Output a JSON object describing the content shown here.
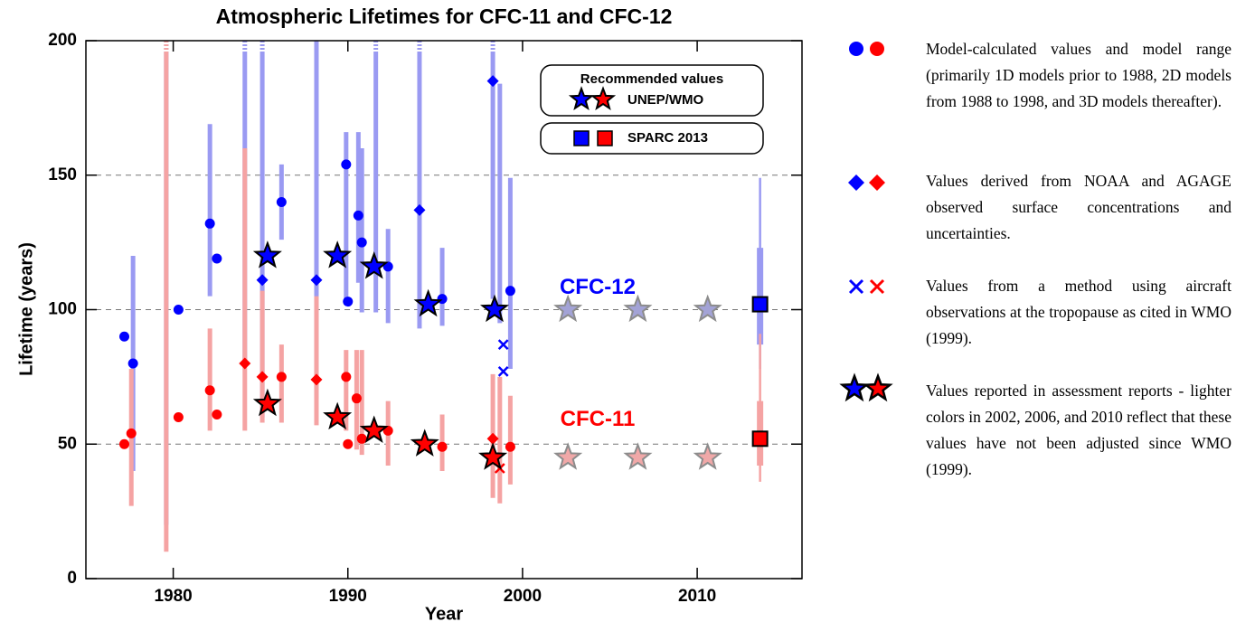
{
  "chart_data": {
    "type": "scatter",
    "title": "Atmospheric Lifetimes for CFC-11 and CFC-12",
    "x_label": "Year",
    "y_label": "Lifetime (years)",
    "xlim": [
      1975,
      2016
    ],
    "xticks": [
      1980,
      1990,
      2000,
      2010
    ],
    "ylim": [
      0,
      200
    ],
    "yticks": [
      0,
      50,
      100,
      150,
      200
    ],
    "grid": true,
    "annotations": [
      {
        "text": "CFC-12",
        "color": "#0000ff"
      },
      {
        "text": "CFC-11",
        "color": "#ff0000"
      }
    ],
    "legend_title": "Recommended values",
    "series": [
      {
        "marker": "circle",
        "color": "#0000ff",
        "bar_color": "#9a9af2",
        "x": [
          1977.2,
          1977.7,
          1979.6,
          1980.3,
          1982.1,
          1982.5,
          1984.1,
          1986.2,
          1989.9,
          1990.0,
          1990.6,
          1990.8,
          1991.6,
          1992.3,
          1995.4,
          1998.7,
          1999.3
        ],
        "values": [
          90,
          80,
          null,
          100,
          132,
          119,
          null,
          140,
          154,
          103,
          135,
          125,
          null,
          116,
          104,
          null,
          107
        ],
        "low": [
          null,
          40,
          20,
          null,
          105,
          null,
          80,
          126,
          102,
          null,
          110,
          99,
          99,
          95,
          94,
          95,
          78
        ],
        "high": [
          null,
          120,
          215,
          null,
          169,
          null,
          215,
          154,
          166,
          null,
          166,
          160,
          215,
          130,
          123,
          184,
          149
        ]
      },
      {
        "marker": "circle",
        "color": "#ff0000",
        "bar_color": "#f5a3a3",
        "x": [
          1977.2,
          1977.6,
          1979.6,
          1980.3,
          1982.1,
          1982.5,
          1986.2,
          1989.9,
          1990.0,
          1990.5,
          1990.8,
          1992.3,
          1995.4,
          1998.7,
          1999.3
        ],
        "values": [
          50,
          54,
          null,
          60,
          70,
          61,
          75,
          75,
          50,
          67,
          52,
          55,
          49,
          null,
          49
        ],
        "low": [
          null,
          27,
          10,
          null,
          55,
          null,
          58,
          55,
          null,
          48,
          46,
          42,
          40,
          28,
          35
        ],
        "high": [
          null,
          78,
          215,
          null,
          93,
          null,
          87,
          85,
          null,
          85,
          85,
          66,
          61,
          75,
          68
        ]
      },
      {
        "marker": "diamond",
        "color": "#0000ff",
        "bar_color": "#9a9af2",
        "x": [
          1985.1,
          1988.2,
          1994.1,
          1998.3
        ],
        "values": [
          111,
          111,
          137,
          185
        ],
        "low": [
          60,
          67,
          93,
          104
        ],
        "high": [
          215,
          200,
          215,
          215
        ]
      },
      {
        "marker": "diamond",
        "color": "#ff0000",
        "bar_color": "#f5a3a3",
        "x": [
          1984.1,
          1985.1,
          1988.2,
          1998.3
        ],
        "values": [
          80,
          75,
          74,
          52
        ],
        "low": [
          55,
          58,
          57,
          30
        ],
        "high": [
          160,
          107,
          105,
          76
        ]
      },
      {
        "marker": "cross",
        "color": "#0000ff",
        "x": [
          1998.9,
          1998.9
        ],
        "values": [
          87,
          77
        ]
      },
      {
        "marker": "cross",
        "color": "#ff0000",
        "x": [
          1998.7
        ],
        "values": [
          41
        ]
      },
      {
        "name": "UNEP/WMO",
        "marker": "star",
        "color": "#0000ff",
        "edge": "#000000",
        "x": [
          1985.4,
          1989.4,
          1991.5,
          1994.6,
          1998.4
        ],
        "values": [
          120,
          120,
          116,
          102,
          100
        ]
      },
      {
        "name": "UNEP/WMO",
        "marker": "star",
        "color": "#ff0000",
        "edge": "#000000",
        "x": [
          1985.4,
          1989.4,
          1991.5,
          1994.4,
          1998.3
        ],
        "values": [
          65,
          60,
          55,
          50,
          45
        ]
      },
      {
        "marker": "star",
        "color": "#a3a3d6",
        "edge": "#8c8c8c",
        "x": [
          2002.6,
          2006.6,
          2010.6
        ],
        "values": [
          100,
          100,
          100
        ]
      },
      {
        "marker": "star",
        "color": "#f0a8a8",
        "edge": "#8c8c8c",
        "x": [
          2002.6,
          2006.6,
          2010.6
        ],
        "values": [
          45,
          45,
          45
        ]
      },
      {
        "name": "SPARC 2013",
        "marker": "square",
        "color": "#0000ff",
        "bar_color": "#9a9af2",
        "edge": "#000000",
        "x": [
          2013.6
        ],
        "values": [
          102
        ],
        "low": [
          78
        ],
        "high": [
          149
        ],
        "low_inner": [
          87
        ],
        "high_inner": [
          123
        ]
      },
      {
        "name": "SPARC 2013",
        "marker": "square",
        "color": "#ff0000",
        "bar_color": "#f5a3a3",
        "edge": "#000000",
        "x": [
          2013.6
        ],
        "values": [
          52
        ],
        "low": [
          36
        ],
        "high": [
          91
        ],
        "low_inner": [
          42
        ],
        "high_inner": [
          66
        ]
      }
    ],
    "notes": [
      "Model-calculated values and model range (primarily 1D models prior to 1988, 2D models from 1988 to 1998, and 3D models thereafter).",
      "Values derived from NOAA and AGAGE observed surface concentrations and uncertainties.",
      "Values from a method using aircraft observations at the tropopause as cited in WMO (1999).",
      "Values reported in assessment reports - lighter colors in 2002, 2006, and 2010 reflect that these values have not been adjusted since WMO (1999)."
    ]
  }
}
